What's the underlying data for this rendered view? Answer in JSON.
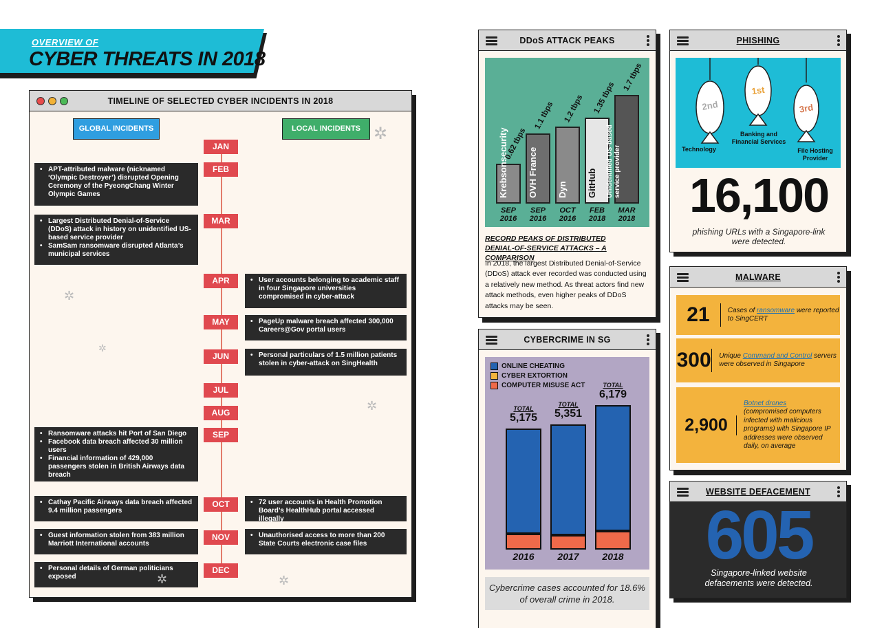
{
  "header": {
    "subtitle": "OVERVIEW OF",
    "title": "CYBER THREATS IN 2018"
  },
  "timeline": {
    "title": "TIMELINE OF SELECTED CYBER INCIDENTS IN 2018",
    "global_label": "GLOBAL INCIDENTS",
    "local_label": "LOCAL INCIDENTS",
    "months": [
      "JAN",
      "FEB",
      "MAR",
      "APR",
      "MAY",
      "JUN",
      "JUL",
      "AUG",
      "SEP",
      "OCT",
      "NOV",
      "DEC"
    ],
    "global": {
      "feb": [
        "APT-attributed malware (nicknamed ‘Olympic Destroyer’) disrupted Opening Ceremony of the PyeongChang Winter Olympic Games"
      ],
      "mar": [
        "Largest Distributed Denial-of-Service (DDoS) attack in history on unidentified US-based service provider",
        "SamSam ransomware disrupted Atlanta’s municipal services"
      ],
      "sep": [
        "Ransomware attacks hit Port of San Diego",
        "Facebook data breach affected 30 million users",
        "Financial information of 429,000 passengers stolen in British Airways data breach"
      ],
      "oct": [
        "Cathay Pacific Airways data breach affected 9.4 million passengers"
      ],
      "nov": [
        "Guest information stolen from 383 million Marriott International accounts"
      ],
      "dec": [
        "Personal details of German politicians exposed"
      ]
    },
    "local": {
      "apr": [
        "User accounts belonging to academic staff in four Singapore universities compromised in cyber-attack"
      ],
      "may": [
        "PageUp malware breach affected 300,000 Careers@Gov portal users"
      ],
      "jun": [
        "Personal particulars of 1.5 million patients stolen in cyber-attack on SingHealth"
      ],
      "oct": [
        "72 user accounts in Health Promotion Board’s HealthHub portal accessed illegally"
      ],
      "nov": [
        "Unauthorised access to more than 200 State Courts electronic case files"
      ]
    }
  },
  "ddos": {
    "title": "DDoS ATTACK PEAKS",
    "heading": "RECORD PEAKS OF DISTRIBUTED DENIAL-OF-SERVICE ATTACKS – A COMPARISON",
    "body": "In 2018, the largest Distributed Denial-of-Service (DDoS) attack ever recorded was conducted using a relatively new method. As threat actors find new attack methods, even higher peaks of DDoS attacks may be seen."
  },
  "cybercrime": {
    "title": "CYBERCRIME IN SG",
    "footer": "Cybercrime cases accounted for 18.6% of overall crime in 2018.",
    "total_label": "TOTAL"
  },
  "phishing": {
    "title": "PHISHING",
    "fish": [
      {
        "rank": "2nd",
        "label": "Technology"
      },
      {
        "rank": "1st",
        "label": "Banking and Financial Services"
      },
      {
        "rank": "3rd",
        "label": "File Hosting Provider"
      }
    ],
    "number": "16,100",
    "caption": "phishing URLs with a Singapore-link were detected."
  },
  "malware": {
    "title": "MALWARE",
    "rows": [
      {
        "num": "21",
        "pre": "Cases of ",
        "link": "ransomware",
        "post": " were reported to SingCERT"
      },
      {
        "num": "300",
        "pre": "Unique ",
        "link": "Command and Control",
        "post": " servers were observed in Singapore"
      },
      {
        "num": "2,900",
        "pre": "",
        "link": "Botnet drones",
        "post": " (compromised computers infected with malicious programs) with Singapore IP addresses were observed daily, on average"
      }
    ]
  },
  "defacement": {
    "title": "WEBSITE DEFACEMENT",
    "number": "605",
    "caption": "Singapore-linked website defacements were detected."
  },
  "colors": {
    "cyan": "#1ebcd6",
    "red": "#e0494f",
    "blue": "#2463b1",
    "orange": "#f3b33d",
    "coral": "#ef6a4a",
    "teal": "#5aaf96",
    "lavender": "#b2a6c4"
  },
  "chart_data": [
    {
      "type": "bar",
      "title": "DDoS ATTACK PEAKS",
      "categories": [
        "Krebsonsecurity",
        "OVH France",
        "Dyn",
        "GitHub",
        "Unidentified US-based service provider"
      ],
      "dates": [
        "SEP 2016",
        "SEP 2016",
        "OCT 2016",
        "FEB 2018",
        "MAR 2018"
      ],
      "value_labels": [
        "0.62 tbps",
        "1.1 tbps",
        "1.2 tbps",
        "1.35 tbps",
        "1.7 tbps"
      ],
      "values": [
        0.62,
        1.1,
        1.2,
        1.35,
        1.7
      ],
      "unit": "tbps"
    },
    {
      "type": "bar",
      "title": "CYBERCRIME IN SG",
      "categories": [
        "2016",
        "2017",
        "2018"
      ],
      "totals": [
        5175,
        5351,
        6179
      ],
      "total_labels": [
        "5,175",
        "5,351",
        "6,179"
      ],
      "series": [
        {
          "name": "ONLINE CHEATING",
          "values": [
            4510,
            4750,
            5420
          ]
        },
        {
          "name": "CYBER EXTORTION",
          "values": [
            20,
            25,
            20
          ]
        },
        {
          "name": "COMPUTER MISUSE ACT",
          "values": [
            645,
            576,
            739
          ]
        }
      ]
    }
  ]
}
